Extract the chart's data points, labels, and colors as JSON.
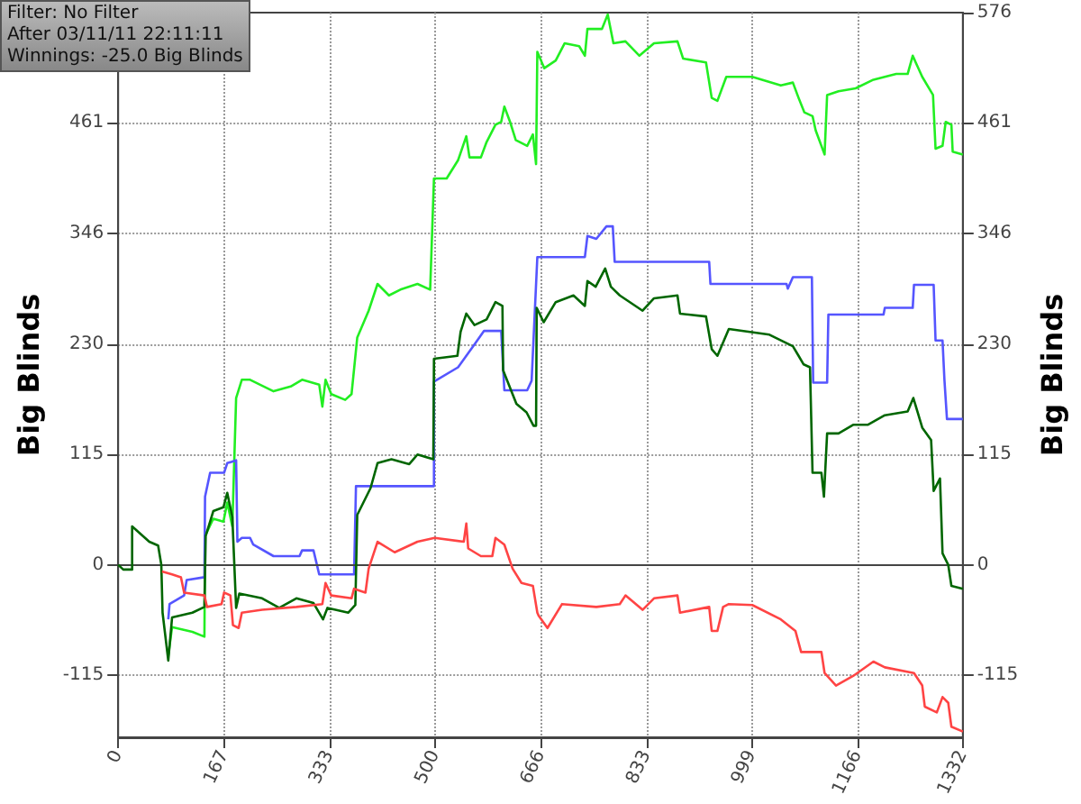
{
  "chart_data": {
    "type": "line",
    "ylabel": "Big Blinds",
    "y2label": "Big Blinds",
    "annotations": [
      "Filter: No Filter",
      "After 03/11/11 22:11:11",
      "Winnings: -25.0 Big Blinds"
    ],
    "xlim": [
      0,
      1332
    ],
    "xticks": [
      0,
      167,
      333,
      500,
      666,
      833,
      999,
      1166,
      1332
    ],
    "ylim": [
      -180,
      576
    ],
    "yticks": [
      -115,
      0,
      115,
      230,
      346,
      461
    ],
    "y2lim": [
      -180,
      576
    ],
    "y2ticks": [
      -115,
      0,
      115,
      230,
      346,
      461,
      576
    ],
    "grid": true,
    "marker": "none",
    "line_style": "solid",
    "ref_lines": [
      {
        "axis": "y",
        "value": 0,
        "color": "#444444",
        "line_style": "solid"
      }
    ],
    "series": [
      {
        "color": "#22ee22",
        "x": [
          79,
          85,
          117,
          136,
          137,
          150,
          166,
          172,
          180,
          186,
          195,
          208,
          245,
          272,
          290,
          317,
          322,
          327,
          336,
          358,
          368,
          377,
          395,
          409,
          427,
          445,
          472,
          492,
          498,
          518,
          536,
          549,
          554,
          572,
          581,
          595,
          604,
          609,
          618,
          627,
          645,
          654,
          659,
          661,
          672,
          690,
          704,
          727,
          736,
          740,
          763,
          772,
          781,
          800,
          822,
          845,
          882,
          891,
          927,
          936,
          945,
          959,
          1000,
          1045,
          1064,
          1073,
          1082,
          1095,
          1100,
          1114,
          1118,
          1136,
          1163,
          1191,
          1227,
          1245,
          1253,
          1268,
          1285,
          1289,
          1300,
          1305,
          1314,
          1316,
          1332
        ],
        "values": [
          -95,
          -65,
          -70,
          -75,
          30,
          48,
          45,
          65,
          40,
          174,
          193,
          193,
          181,
          186,
          193,
          188,
          165,
          193,
          178,
          172,
          178,
          237,
          265,
          293,
          281,
          287,
          293,
          287,
          403,
          403,
          422,
          447,
          425,
          425,
          441,
          459,
          462,
          478,
          462,
          443,
          437,
          449,
          418,
          535,
          518,
          526,
          544,
          541,
          531,
          559,
          559,
          574,
          544,
          546,
          531,
          544,
          546,
          528,
          524,
          487,
          484,
          509,
          509,
          500,
          503,
          487,
          472,
          468,
          453,
          428,
          490,
          494,
          497,
          506,
          512,
          512,
          531,
          509,
          490,
          434,
          437,
          462,
          459,
          431,
          428
        ]
      },
      {
        "color": "#5555ff",
        "x": [
          79,
          81,
          104,
          108,
          136,
          137,
          145,
          167,
          172,
          186,
          188,
          195,
          208,
          213,
          245,
          286,
          290,
          308,
          317,
          372,
          375,
          498,
          498,
          536,
          563,
          577,
          604,
          609,
          645,
          652,
          661,
          736,
          740,
          754,
          770,
          780,
          783,
          932,
          934,
          1054,
          1056,
          1064,
          1094,
          1096,
          1118,
          1120,
          1207,
          1209,
          1253,
          1255,
          1286,
          1289,
          1300,
          1303,
          1307,
          1332
        ],
        "values": [
          -57,
          -41,
          -32,
          -16,
          -13,
          71,
          96,
          96,
          106,
          109,
          24,
          28,
          28,
          21,
          9,
          9,
          15,
          15,
          -10,
          -10,
          82,
          82,
          191,
          206,
          231,
          244,
          244,
          182,
          182,
          192,
          321,
          321,
          343,
          340,
          353,
          353,
          316,
          316,
          293,
          293,
          288,
          300,
          300,
          190,
          190,
          261,
          261,
          268,
          268,
          292,
          292,
          234,
          234,
          193,
          152,
          152
        ]
      },
      {
        "color": "#006600",
        "x": [
          0,
          8,
          22,
          22,
          49,
          63,
          68,
          70,
          79,
          85,
          117,
          136,
          138,
          150,
          166,
          172,
          180,
          186,
          191,
          227,
          254,
          281,
          308,
          323,
          330,
          363,
          374,
          377,
          398,
          409,
          431,
          459,
          472,
          497,
          498,
          535,
          540,
          549,
          562,
          581,
          595,
          606,
          607,
          628,
          644,
          655,
          659,
          660,
          671,
          690,
          718,
          736,
          740,
          753,
          768,
          777,
          791,
          827,
          845,
          882,
          886,
          927,
          936,
          945,
          963,
          1027,
          1064,
          1073,
          1081,
          1091,
          1095,
          1109,
          1113,
          1118,
          1136,
          1159,
          1182,
          1209,
          1245,
          1254,
          1268,
          1282,
          1286,
          1296,
          1300,
          1309,
          1314,
          1332
        ],
        "values": [
          0,
          -5,
          -5,
          40,
          24,
          20,
          0,
          -50,
          -100,
          -55,
          -50,
          -44,
          30,
          56,
          60,
          75,
          50,
          -45,
          -30,
          -35,
          -45,
          -35,
          -40,
          -57,
          -45,
          -50,
          -42,
          52,
          80,
          106,
          110,
          105,
          115,
          110,
          215,
          218,
          243,
          262,
          250,
          256,
          274,
          270,
          203,
          168,
          159,
          145,
          145,
          268,
          253,
          274,
          281,
          270,
          296,
          290,
          309,
          290,
          281,
          265,
          278,
          281,
          262,
          259,
          225,
          218,
          246,
          240,
          228,
          218,
          209,
          206,
          96,
          96,
          71,
          137,
          137,
          146,
          146,
          156,
          160,
          174,
          143,
          130,
          77,
          90,
          12,
          0,
          -22,
          -25
        ]
      },
      {
        "color": "#ff4444",
        "x": [
          69,
          85,
          99,
          104,
          136,
          140,
          163,
          167,
          177,
          181,
          190,
          195,
          227,
          281,
          322,
          327,
          336,
          368,
          372,
          390,
          395,
          409,
          436,
          472,
          499,
          545,
          549,
          552,
          572,
          590,
          595,
          609,
          622,
          636,
          654,
          661,
          663,
          677,
          700,
          754,
          791,
          800,
          827,
          845,
          882,
          886,
          932,
          936,
          945,
          954,
          963,
          1000,
          1045,
          1068,
          1077,
          1109,
          1114,
          1132,
          1159,
          1191,
          1209,
          1255,
          1268,
          1272,
          1291,
          1300,
          1309,
          1314,
          1332
        ],
        "values": [
          -7,
          -10,
          -13,
          -29,
          -32,
          -44,
          -41,
          -29,
          -32,
          -63,
          -66,
          -50,
          -47,
          -44,
          -41,
          -19,
          -32,
          -35,
          -25,
          -29,
          -4,
          24,
          13,
          24,
          28,
          24,
          43,
          17,
          9,
          9,
          28,
          21,
          -4,
          -19,
          -22,
          -50,
          -53,
          -66,
          -41,
          -44,
          -41,
          -32,
          -47,
          -35,
          -32,
          -50,
          -44,
          -69,
          -69,
          -44,
          -41,
          -42,
          -57,
          -69,
          -91,
          -91,
          -113,
          -126,
          -116,
          -101,
          -107,
          -113,
          -126,
          -148,
          -154,
          -138,
          -144,
          -169,
          -174
        ]
      }
    ]
  }
}
